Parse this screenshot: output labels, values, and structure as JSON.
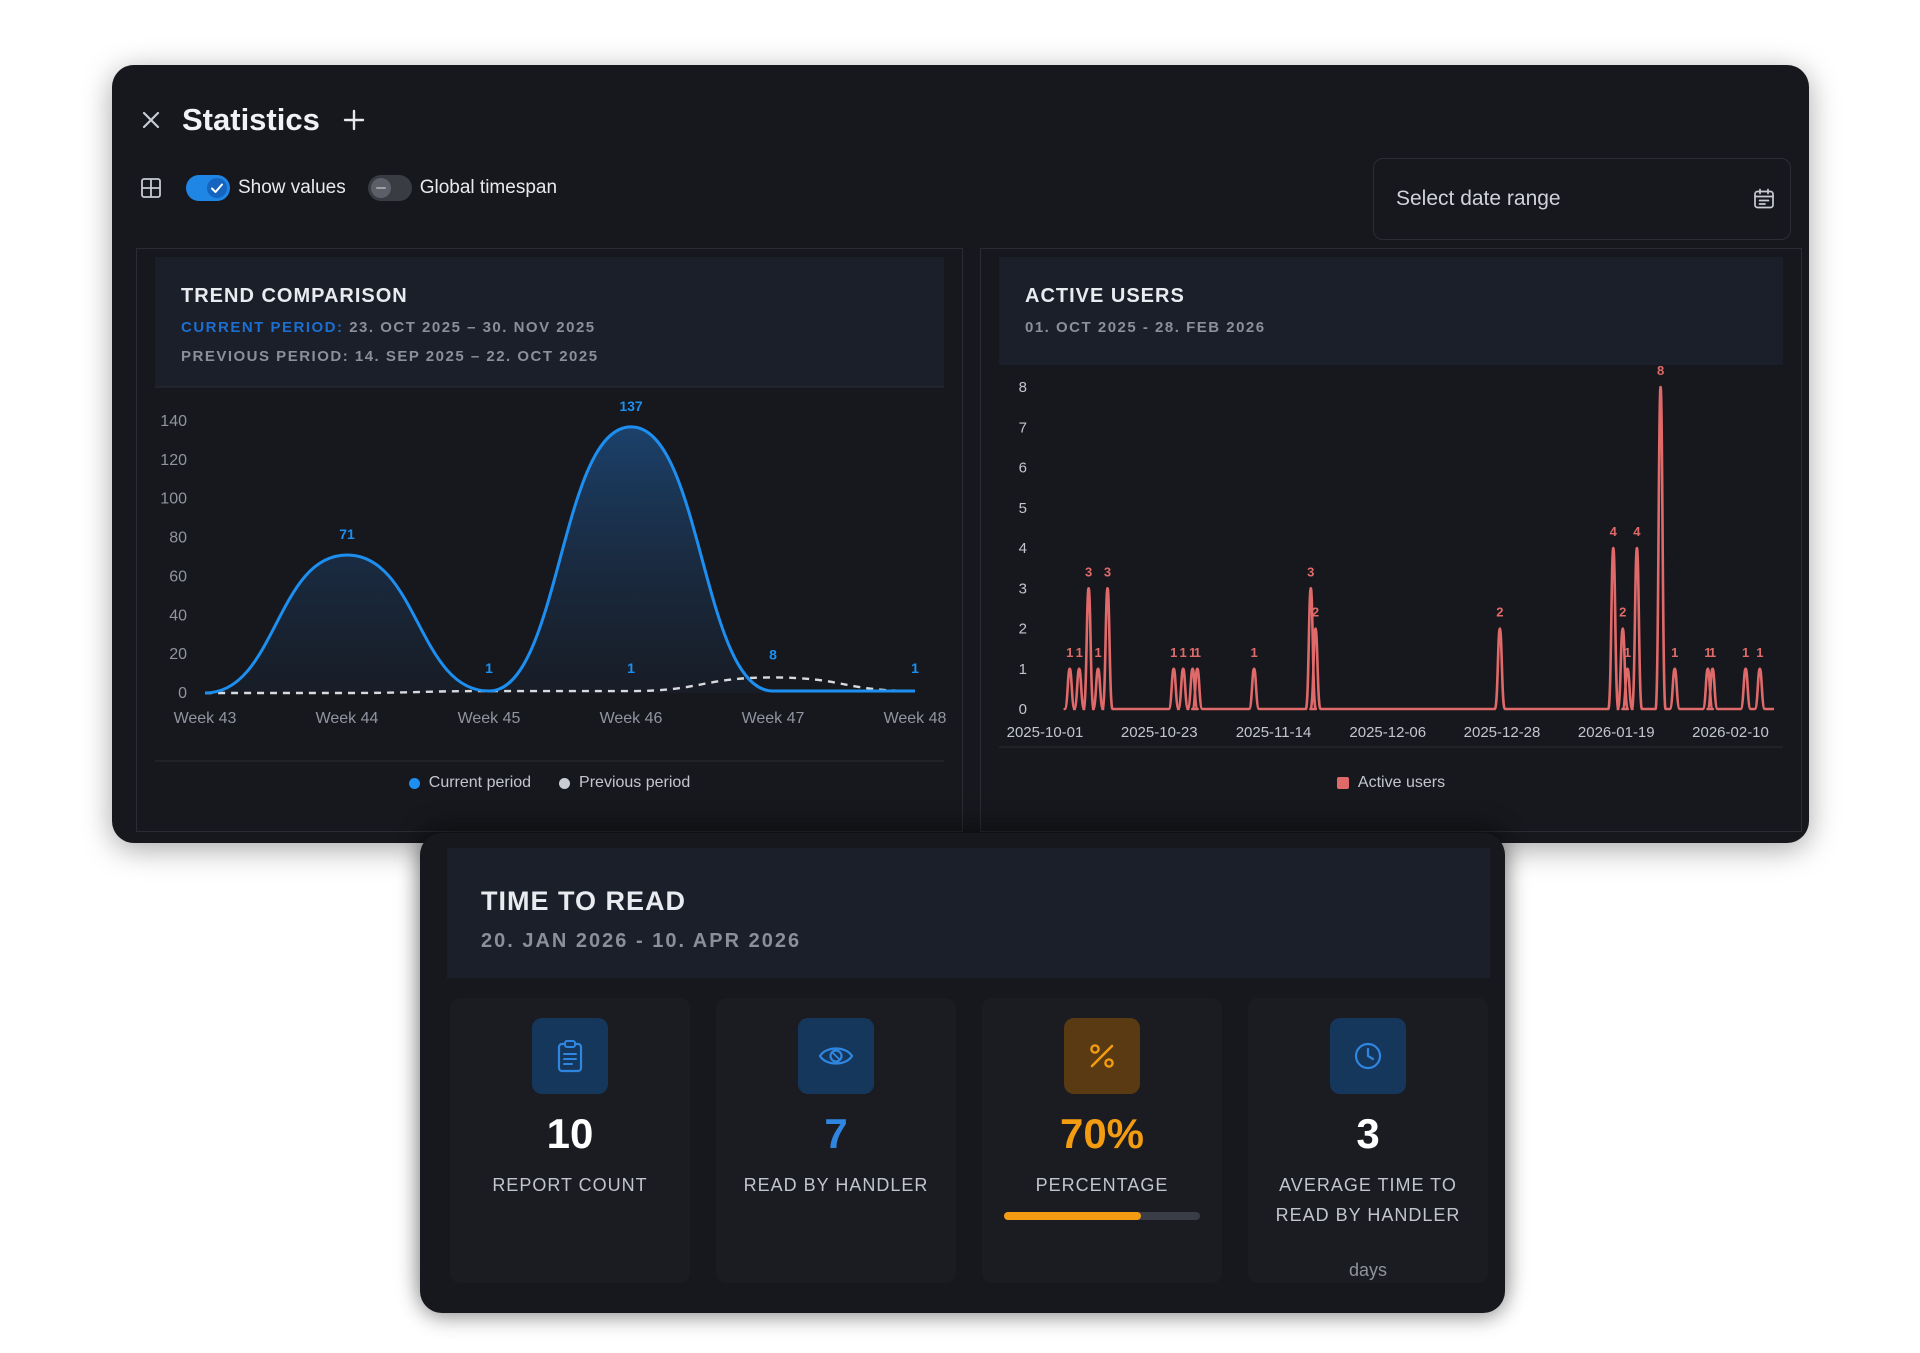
{
  "window": {
    "title": "Statistics"
  },
  "toolbar": {
    "show_values_label": "Show values",
    "show_values_on": true,
    "global_timespan_label": "Global timespan",
    "global_timespan_on": false
  },
  "date_range": {
    "placeholder": "Select date range"
  },
  "trend": {
    "title": "TREND COMPARISON",
    "current_label": "CURRENT PERIOD:",
    "current_range": "23. OCT 2025 – 30. NOV 2025",
    "previous_label": "PREVIOUS PERIOD:",
    "previous_range": "14. SEP 2025 – 22. OCT 2025",
    "legend_current": "Current period",
    "legend_previous": "Previous period"
  },
  "active": {
    "title": "ACTIVE USERS",
    "range": "01. OCT 2025 - 28. FEB 2026",
    "legend": "Active users"
  },
  "time_to_read": {
    "title": "TIME TO READ",
    "range": "20. JAN 2026 - 10. APR 2026",
    "stats": [
      {
        "value": "10",
        "label": "REPORT COUNT",
        "icon": "clipboard-icon",
        "color": "#ffffff"
      },
      {
        "value": "7",
        "label": "READ BY HANDLER",
        "icon": "eye-icon",
        "color": "#2f86e0"
      },
      {
        "value": "70%",
        "label": "PERCENTAGE",
        "icon": "percent-icon",
        "color": "#f39c12",
        "progress": 0.7
      },
      {
        "value": "3",
        "label": "AVERAGE TIME TO READ BY HANDLER",
        "unit": "days",
        "icon": "clock-icon",
        "color": "#ffffff"
      }
    ]
  },
  "chart_data": [
    {
      "type": "line",
      "title": "TREND COMPARISON",
      "categories": [
        "Week 43",
        "Week 44",
        "Week 45",
        "Week 46",
        "Week 47",
        "Week 48"
      ],
      "series": [
        {
          "name": "Current period",
          "values": [
            0,
            71,
            1,
            137,
            1,
            1
          ],
          "color": "#1d8ff0",
          "style": "solid",
          "labels": [
            "",
            "71",
            "1",
            "137",
            "",
            "1"
          ]
        },
        {
          "name": "Previous period",
          "values": [
            0,
            0,
            1,
            1,
            8,
            1
          ],
          "color": "#d8dade",
          "style": "dashed",
          "labels": [
            "",
            "",
            "",
            "1",
            "8",
            ""
          ]
        }
      ],
      "y_ticks": [
        "0",
        "20",
        "40",
        "60",
        "80",
        "100",
        "120",
        "140"
      ],
      "ylim": [
        0,
        140
      ],
      "legend": "bottom-center"
    },
    {
      "type": "line",
      "title": "ACTIVE USERS",
      "x_ticks": [
        "2025-10-01",
        "2025-10-23",
        "2025-11-14",
        "2025-12-06",
        "2025-12-28",
        "2026-01-19",
        "2026-02-10"
      ],
      "x_range": [
        "2025-10-01",
        "2026-02-28"
      ],
      "series": [
        {
          "name": "Active users",
          "color": "#e06a6a",
          "points": [
            [
              "2025-10-02",
              1
            ],
            [
              "2025-10-04",
              1
            ],
            [
              "2025-10-06",
              3
            ],
            [
              "2025-10-08",
              1
            ],
            [
              "2025-10-10",
              3
            ],
            [
              "2025-10-24",
              1
            ],
            [
              "2025-10-26",
              1
            ],
            [
              "2025-10-28",
              1
            ],
            [
              "2025-10-29",
              1
            ],
            [
              "2025-11-10",
              1
            ],
            [
              "2025-11-22",
              3
            ],
            [
              "2025-11-23",
              2
            ],
            [
              "2026-01-01",
              2
            ],
            [
              "2026-01-25",
              4
            ],
            [
              "2026-01-27",
              2
            ],
            [
              "2026-01-28",
              1
            ],
            [
              "2026-01-30",
              4
            ],
            [
              "2026-02-04",
              8
            ],
            [
              "2026-02-07",
              1
            ],
            [
              "2026-02-14",
              1
            ],
            [
              "2026-02-15",
              1
            ],
            [
              "2026-02-22",
              1
            ],
            [
              "2026-02-25",
              1
            ]
          ]
        }
      ],
      "y_ticks": [
        "0",
        "1",
        "2",
        "3",
        "4",
        "5",
        "6",
        "7",
        "8"
      ],
      "ylim": [
        0,
        8
      ],
      "legend": "bottom-center"
    }
  ]
}
